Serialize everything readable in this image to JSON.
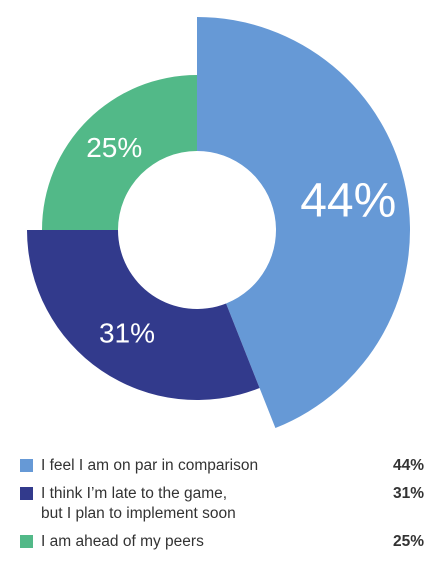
{
  "chart_data": {
    "type": "pie",
    "slices": [
      {
        "label_lines": [
          "I feel I am on par in comparison"
        ],
        "value": 44,
        "display": "44%",
        "color": "#6699d6"
      },
      {
        "label_lines": [
          "I think I’m late to the game,",
          "but I plan to implement soon"
        ],
        "value": 31,
        "display": "31%",
        "color": "#323a8c"
      },
      {
        "label_lines": [
          "I am ahead of my peers"
        ],
        "value": 25,
        "display": "25%",
        "color": "#52b988"
      }
    ]
  }
}
